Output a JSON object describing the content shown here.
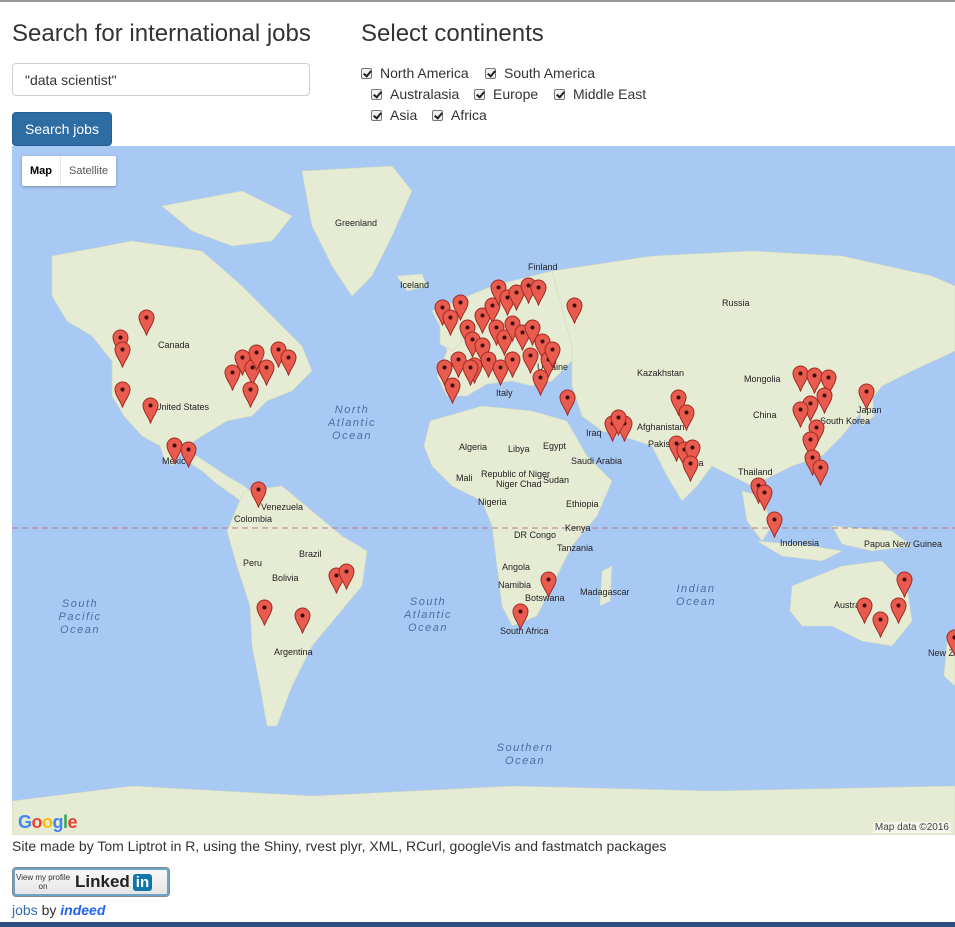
{
  "search": {
    "title": "Search for international jobs",
    "query": "\"data scientist\"",
    "button_label": "Search jobs"
  },
  "continents": {
    "title": "Select continents",
    "options": [
      {
        "label": "North America",
        "checked": true
      },
      {
        "label": "South America",
        "checked": true
      },
      {
        "label": "Australasia",
        "checked": true
      },
      {
        "label": "Europe",
        "checked": true
      },
      {
        "label": "Middle East",
        "checked": true
      },
      {
        "label": "Asia",
        "checked": true
      },
      {
        "label": "Africa",
        "checked": true
      }
    ]
  },
  "map": {
    "type_controls": {
      "map": "Map",
      "satellite": "Satellite"
    },
    "place_labels": [
      "Greenland",
      "Iceland",
      "Finland",
      "Russia",
      "Canada",
      "United States",
      "Kazakhstan",
      "Mongolia",
      "China",
      "Japan",
      "South Korea",
      "Afghanistan",
      "Pakistan",
      "India",
      "Thailand",
      "Iraq",
      "Saudi Arabia",
      "Ukraine",
      "Algeria",
      "Libya",
      "Egypt",
      "Mali",
      "Niger",
      "Republic of Niger",
      "Sudan",
      "Chad",
      "Nigeria",
      "Ethiopia",
      "DR Congo",
      "Kenya",
      "Tanzania",
      "Angola",
      "Namibia",
      "Botswana",
      "Madagascar",
      "South Africa",
      "Venezuela",
      "Colombia",
      "Peru",
      "Brazil",
      "Bolivia",
      "Argentina",
      "Indonesia",
      "Papua New Guinea",
      "Australia",
      "New Zealand",
      "Mexico",
      "Italy"
    ],
    "ocean_labels": [
      "North Atlantic Ocean",
      "South Atlantic Ocean",
      "South Pacific Ocean",
      "Indian Ocean",
      "Southern Ocean"
    ],
    "attribution": "Map data ©2016",
    "logo": "Google",
    "marker_icon": "red-map-pin-icon",
    "marker_color": "#ea5b4f",
    "ocean_color": "#a9c9f5",
    "land_color": "#e8eed8"
  },
  "footer": {
    "credit": "Site made by Tom Liptrot in R, using the Shiny, rvest plyr, XML, RCurl, googleVis and fastmatch packages",
    "linkedin_small": "View my profile on",
    "linkedin_word": "Linked",
    "linkedin_in": "in",
    "jobs": "jobs",
    "by": "by",
    "indeed": "indeed"
  }
}
